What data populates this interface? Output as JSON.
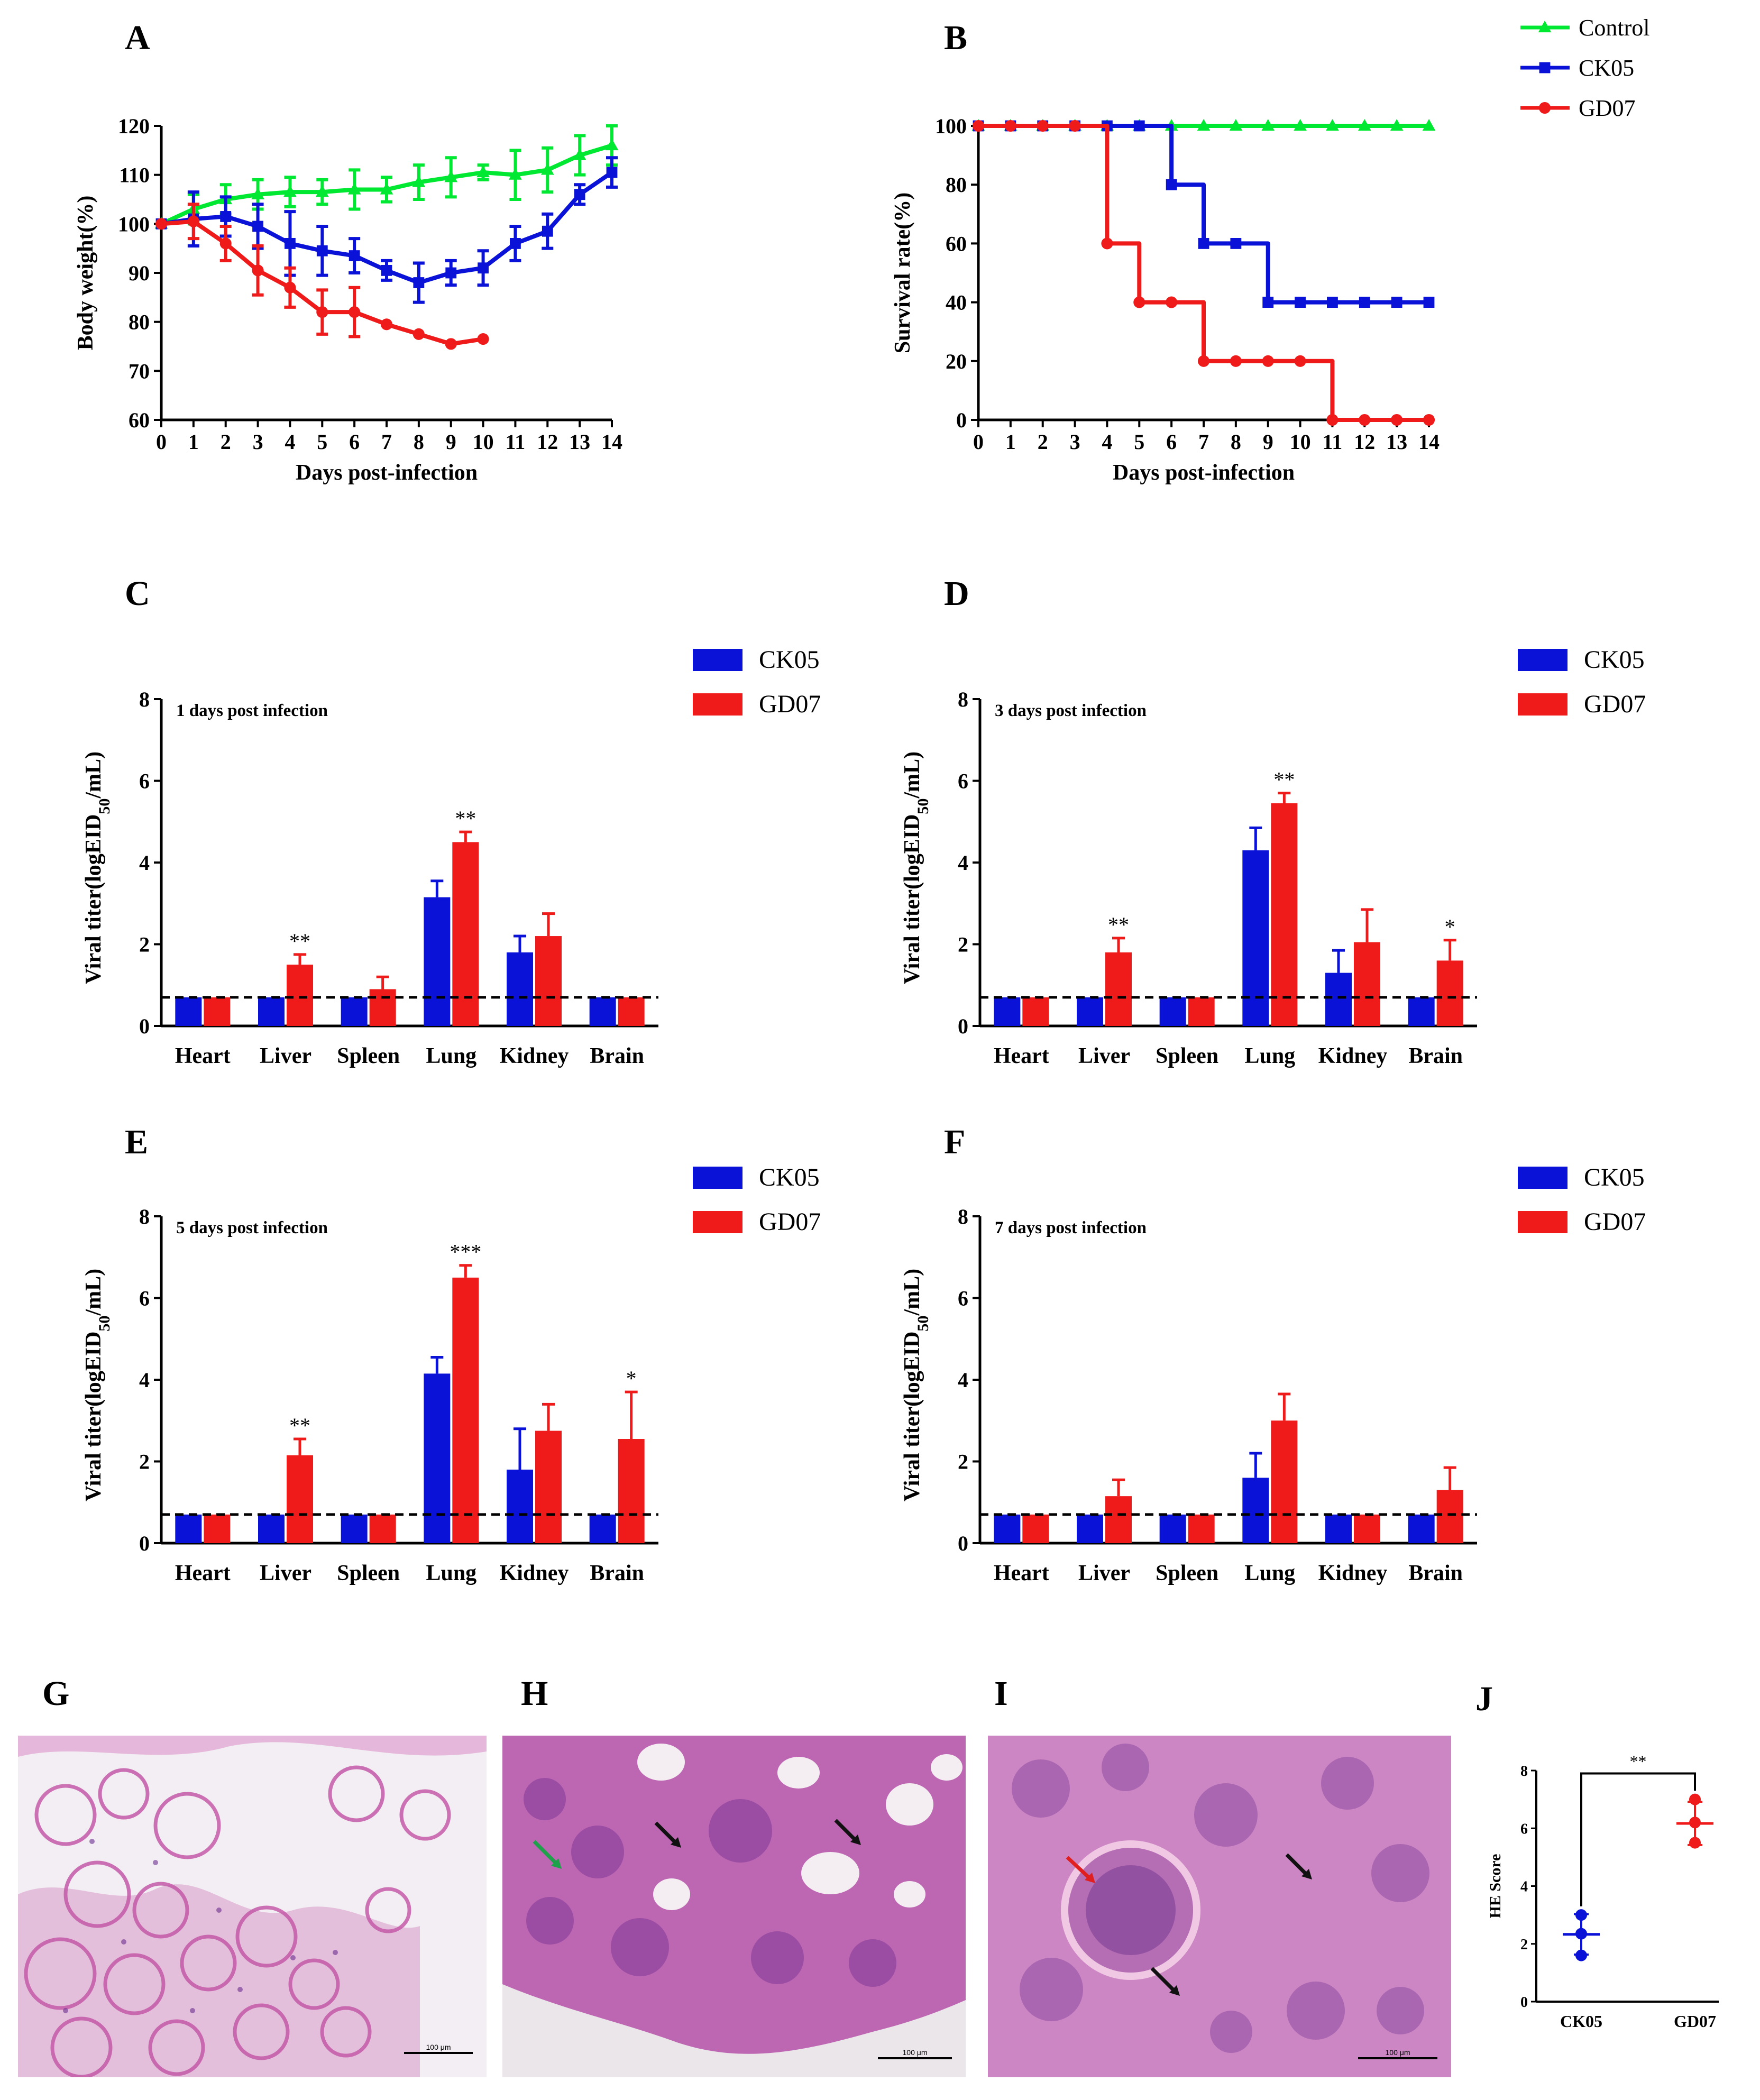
{
  "panels": {
    "A": "A",
    "B": "B",
    "C": "C",
    "D": "D",
    "E": "E",
    "F": "F",
    "G": "G",
    "H": "H",
    "I": "I",
    "J": "J"
  },
  "colors": {
    "control": "#00e832",
    "ck05": "#0a12d8",
    "gd07": "#ef1a1a",
    "axis": "#000000"
  },
  "chart_data": [
    {
      "id": "A",
      "type": "line",
      "xlabel": "Days post-infection",
      "ylabel": "Body weight(%)",
      "xlim": [
        0,
        14
      ],
      "ylim": [
        60,
        120
      ],
      "xticks": [
        0,
        1,
        2,
        3,
        4,
        5,
        6,
        7,
        8,
        9,
        10,
        11,
        12,
        13,
        14
      ],
      "yticks": [
        60,
        70,
        80,
        90,
        100,
        110,
        120
      ],
      "series": [
        {
          "name": "Control",
          "color": "#00e832",
          "marker": "triangle",
          "x": [
            0,
            1,
            2,
            3,
            4,
            5,
            6,
            7,
            8,
            9,
            10,
            11,
            12,
            13,
            14
          ],
          "y": [
            100,
            103,
            105,
            106,
            106.5,
            106.5,
            107,
            107,
            108.5,
            109.5,
            110.5,
            110,
            111,
            114,
            116
          ],
          "err": [
            0,
            3,
            3,
            3,
            3,
            2.5,
            4,
            2.5,
            3.5,
            4,
            1.5,
            5,
            4.5,
            4,
            4
          ]
        },
        {
          "name": "CK05",
          "color": "#0a12d8",
          "marker": "square",
          "x": [
            0,
            1,
            2,
            3,
            4,
            5,
            6,
            7,
            8,
            9,
            10,
            11,
            12,
            13,
            14
          ],
          "y": [
            100,
            101,
            101.5,
            99.5,
            96,
            94.5,
            93.5,
            90.5,
            88,
            90,
            91,
            96,
            98.5,
            106,
            110.5
          ],
          "err": [
            0,
            5.5,
            4,
            4.5,
            6.5,
            5,
            3.5,
            2,
            4,
            2.5,
            3.5,
            3.5,
            3.5,
            2,
            3
          ]
        },
        {
          "name": "GD07",
          "color": "#ef1a1a",
          "marker": "circle",
          "x": [
            0,
            1,
            2,
            3,
            4,
            5,
            6,
            7,
            8,
            9,
            10
          ],
          "y": [
            100,
            100.5,
            96,
            90.5,
            87,
            82,
            82,
            79.5,
            77.5,
            75.5,
            76.5
          ],
          "err": [
            0,
            3.5,
            3.5,
            5,
            4,
            4.5,
            5,
            0,
            0,
            0,
            0
          ]
        }
      ]
    },
    {
      "id": "B",
      "type": "line",
      "step": true,
      "xlabel": "Days post-infection",
      "ylabel": "Survival rate(%)",
      "xlim": [
        0,
        14
      ],
      "ylim": [
        0,
        100
      ],
      "xticks": [
        0,
        1,
        2,
        3,
        4,
        5,
        6,
        7,
        8,
        9,
        10,
        11,
        12,
        13,
        14
      ],
      "yticks": [
        0,
        20,
        40,
        60,
        80,
        100
      ],
      "series": [
        {
          "name": "Control",
          "color": "#00e832",
          "marker": "triangle",
          "x": [
            0,
            1,
            2,
            3,
            4,
            5,
            6,
            7,
            8,
            9,
            10,
            11,
            12,
            13,
            14
          ],
          "y": [
            100,
            100,
            100,
            100,
            100,
            100,
            100,
            100,
            100,
            100,
            100,
            100,
            100,
            100,
            100
          ]
        },
        {
          "name": "CK05",
          "color": "#0a12d8",
          "marker": "square",
          "x": [
            0,
            1,
            2,
            3,
            4,
            5,
            6,
            7,
            8,
            9,
            10,
            11,
            12,
            13,
            14
          ],
          "y": [
            100,
            100,
            100,
            100,
            100,
            100,
            80,
            60,
            60,
            40,
            40,
            40,
            40,
            40,
            40
          ]
        },
        {
          "name": "GD07",
          "color": "#ef1a1a",
          "marker": "circle",
          "x": [
            0,
            1,
            2,
            3,
            4,
            5,
            6,
            7,
            8,
            9,
            10,
            11,
            12,
            13,
            14
          ],
          "y": [
            100,
            100,
            100,
            100,
            60,
            40,
            40,
            20,
            20,
            20,
            20,
            0,
            0,
            0,
            0
          ]
        }
      ],
      "legend": [
        "Control",
        "CK05",
        "GD07"
      ]
    },
    {
      "id": "C",
      "type": "bar",
      "annotation": "1 days post infection",
      "ylabel_main": "Viral titer(logEID",
      "ylabel_sub": "50",
      "ylabel_tail": "/mL)",
      "ylim": [
        0,
        8
      ],
      "yticks": [
        0,
        2,
        4,
        6,
        8
      ],
      "detection_limit": 0.7,
      "categories": [
        "Heart",
        "Liver",
        "Spleen",
        "Lung",
        "Kidney",
        "Brain"
      ],
      "series": [
        {
          "name": "CK05",
          "color": "#0a12d8",
          "values": [
            0.7,
            0.7,
            0.7,
            3.15,
            1.8,
            0.7
          ],
          "err": [
            0,
            0,
            0,
            0.4,
            0.4,
            0
          ]
        },
        {
          "name": "GD07",
          "color": "#ef1a1a",
          "values": [
            0.7,
            1.5,
            0.9,
            4.5,
            2.2,
            0.7
          ],
          "err": [
            0,
            0.25,
            0.3,
            0.25,
            0.55,
            0
          ]
        }
      ],
      "sig": [
        "",
        "**",
        "",
        "**",
        "",
        ""
      ]
    },
    {
      "id": "D",
      "type": "bar",
      "annotation": "3 days post infection",
      "ylabel_main": "Viral titer(logEID",
      "ylabel_sub": "50",
      "ylabel_tail": "/mL)",
      "ylim": [
        0,
        8
      ],
      "yticks": [
        0,
        2,
        4,
        6,
        8
      ],
      "detection_limit": 0.7,
      "categories": [
        "Heart",
        "Liver",
        "Spleen",
        "Lung",
        "Kidney",
        "Brain"
      ],
      "series": [
        {
          "name": "CK05",
          "color": "#0a12d8",
          "values": [
            0.7,
            0.7,
            0.7,
            4.3,
            1.3,
            0.7
          ],
          "err": [
            0,
            0,
            0,
            0.55,
            0.55,
            0
          ]
        },
        {
          "name": "GD07",
          "color": "#ef1a1a",
          "values": [
            0.7,
            1.8,
            0.7,
            5.45,
            2.05,
            1.6
          ],
          "err": [
            0,
            0.35,
            0,
            0.25,
            0.8,
            0.5
          ]
        }
      ],
      "sig": [
        "",
        "**",
        "",
        "**",
        "",
        "*"
      ]
    },
    {
      "id": "E",
      "type": "bar",
      "annotation": "5 days post infection",
      "ylabel_main": "Viral titer(logEID",
      "ylabel_sub": "50",
      "ylabel_tail": "/mL)",
      "ylim": [
        0,
        8
      ],
      "yticks": [
        0,
        2,
        4,
        6,
        8
      ],
      "detection_limit": 0.7,
      "categories": [
        "Heart",
        "Liver",
        "Spleen",
        "Lung",
        "Kidney",
        "Brain"
      ],
      "series": [
        {
          "name": "CK05",
          "color": "#0a12d8",
          "values": [
            0.7,
            0.7,
            0.7,
            4.15,
            1.8,
            0.7
          ],
          "err": [
            0,
            0,
            0,
            0.4,
            1.0,
            0
          ]
        },
        {
          "name": "GD07",
          "color": "#ef1a1a",
          "values": [
            0.7,
            2.15,
            0.7,
            6.5,
            2.75,
            2.55
          ],
          "err": [
            0,
            0.4,
            0,
            0.3,
            0.65,
            1.15
          ]
        }
      ],
      "sig": [
        "",
        "**",
        "",
        "***",
        "",
        "*"
      ]
    },
    {
      "id": "F",
      "type": "bar",
      "annotation": "7 days post infection",
      "ylabel_main": "Viral titer(logEID",
      "ylabel_sub": "50",
      "ylabel_tail": "/mL)",
      "ylim": [
        0,
        8
      ],
      "yticks": [
        0,
        2,
        4,
        6,
        8
      ],
      "detection_limit": 0.7,
      "categories": [
        "Heart",
        "Liver",
        "Spleen",
        "Lung",
        "Kidney",
        "Brain"
      ],
      "series": [
        {
          "name": "CK05",
          "color": "#0a12d8",
          "values": [
            0.7,
            0.7,
            0.7,
            1.6,
            0.7,
            0.7
          ],
          "err": [
            0,
            0,
            0,
            0.6,
            0,
            0
          ]
        },
        {
          "name": "GD07",
          "color": "#ef1a1a",
          "values": [
            0.7,
            1.15,
            0.7,
            3.0,
            0.7,
            1.3
          ],
          "err": [
            0,
            0.4,
            0,
            0.65,
            0,
            0.55
          ]
        }
      ],
      "sig": [
        "",
        "",
        "",
        "",
        "",
        ""
      ]
    },
    {
      "id": "J",
      "type": "scatter",
      "ylabel": "HE Score",
      "ylim": [
        0,
        8
      ],
      "yticks": [
        0,
        2,
        4,
        6,
        8
      ],
      "categories": [
        "CK05",
        "GD07"
      ],
      "series": [
        {
          "name": "CK05",
          "color": "#0a12d8",
          "points": [
            3.0,
            2.35,
            1.6
          ],
          "mean": 2.33,
          "err": 0.7
        },
        {
          "name": "GD07",
          "color": "#ef1a1a",
          "points": [
            7.0,
            6.2,
            5.5
          ],
          "mean": 6.17,
          "err": 0.75
        }
      ],
      "sig": "**"
    }
  ],
  "micrographs": {
    "scale_label": "100 μm"
  }
}
